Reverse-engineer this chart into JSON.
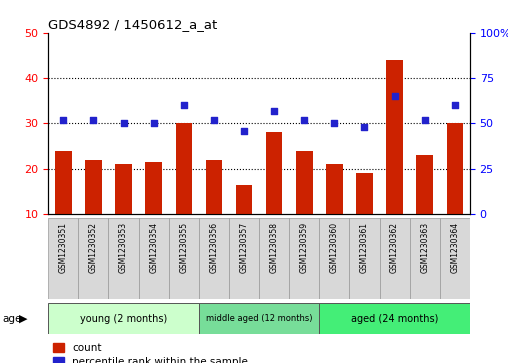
{
  "title": "GDS4892 / 1450612_a_at",
  "samples": [
    "GSM1230351",
    "GSM1230352",
    "GSM1230353",
    "GSM1230354",
    "GSM1230355",
    "GSM1230356",
    "GSM1230357",
    "GSM1230358",
    "GSM1230359",
    "GSM1230360",
    "GSM1230361",
    "GSM1230362",
    "GSM1230363",
    "GSM1230364"
  ],
  "counts": [
    24,
    22,
    21,
    21.5,
    30,
    22,
    16.5,
    28,
    24,
    21,
    19,
    44,
    23,
    30
  ],
  "percentiles": [
    52,
    52,
    50,
    50,
    60,
    52,
    46,
    57,
    52,
    50,
    48,
    65,
    52,
    60
  ],
  "groups": [
    {
      "label": "young (2 months)",
      "start": 0,
      "end": 5,
      "color": "#aaeebb"
    },
    {
      "label": "middle aged (12 months)",
      "start": 5,
      "end": 9,
      "color": "#66cc88"
    },
    {
      "label": "aged (24 months)",
      "start": 9,
      "end": 14,
      "color": "#44dd77"
    }
  ],
  "ylim_left": [
    10,
    50
  ],
  "ylim_right": [
    0,
    100
  ],
  "yticks_left": [
    10,
    20,
    30,
    40,
    50
  ],
  "yticks_right": [
    0,
    25,
    50,
    75,
    100
  ],
  "bar_color": "#CC2200",
  "scatter_color": "#2222CC",
  "grid_yticks": [
    20,
    30,
    40
  ],
  "bar_width": 0.55,
  "label_count": "count",
  "label_percentile": "percentile rank within the sample",
  "group_colors": [
    "#bbffcc",
    "#66dd99",
    "#44ee88"
  ]
}
